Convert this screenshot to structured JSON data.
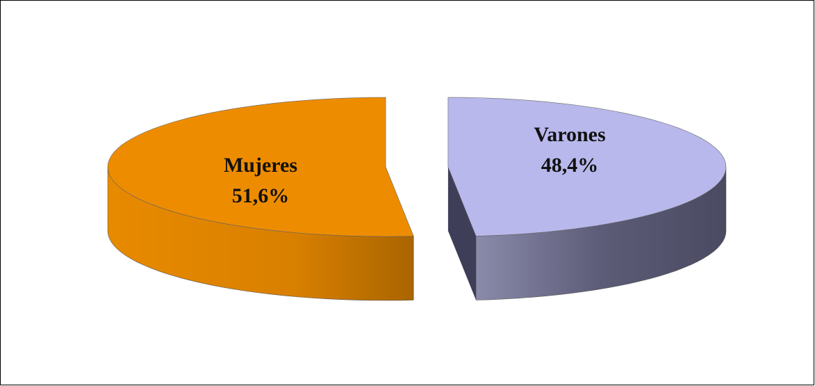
{
  "chart_data": {
    "type": "pie3d",
    "categories": [
      "Mujeres",
      "Varones"
    ],
    "values": [
      51.6,
      48.4
    ],
    "value_labels": [
      "51,6%",
      "48,4%"
    ],
    "colors": [
      "#EE8C00",
      "#B8B8EC"
    ]
  }
}
